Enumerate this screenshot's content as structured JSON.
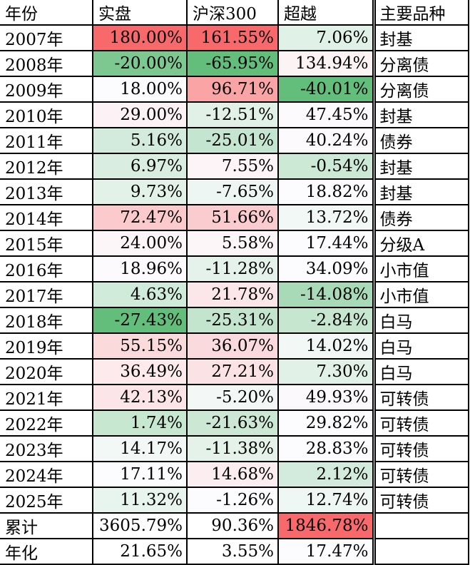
{
  "colors": {
    "scale_max_red": "#F8696B",
    "scale_min_green": "#63BE7B",
    "scale_mid_white": "#FCFCFF",
    "gridline": "#000000"
  },
  "table": {
    "headers": [
      "年份",
      "实盘",
      "沪深300",
      "超越",
      "主要品种"
    ],
    "rows": [
      {
        "year": "2007年",
        "actual": "180.00%",
        "hs300": "161.55%",
        "excess": "7.06%",
        "category": "封基",
        "colors": {
          "actual": "#F8696B",
          "hs300": "#F8696B",
          "excess": "#E0F1E7"
        }
      },
      {
        "year": "2008年",
        "actual": "-20.00%",
        "hs300": "-65.95%",
        "excess": "134.94%",
        "category": "分离债",
        "colors": {
          "actual": "#7DC891",
          "hs300": "#63BE7B",
          "excess": "#FCF3F5"
        }
      },
      {
        "year": "2009年",
        "actual": "18.00%",
        "hs300": "96.71%",
        "excess": "-40.01%",
        "category": "分离债",
        "colors": {
          "actual": "#FCFBFE",
          "hs300": "#FAA4A6",
          "excess": "#63BE7B"
        }
      },
      {
        "year": "2010年",
        "actual": "29.00%",
        "hs300": "-12.51%",
        "excess": "47.45%",
        "category": "封基",
        "colors": {
          "actual": "#FCF1F4",
          "hs300": "#E1F1E8",
          "excess": "#FCFAFD"
        }
      },
      {
        "year": "2011年",
        "actual": "5.16%",
        "hs300": "-25.01%",
        "excess": "40.24%",
        "category": "债券",
        "colors": {
          "actual": "#D3EBDC",
          "hs300": "#C4E5CF",
          "excess": "#FCFAFD"
        }
      },
      {
        "year": "2012年",
        "actual": "6.97%",
        "hs300": "7.55%",
        "excess": "-0.54%",
        "category": "封基",
        "colors": {
          "actual": "#D9EEE1",
          "hs300": "#FCF4F7",
          "excess": "#CCE9D6"
        }
      },
      {
        "year": "2013年",
        "actual": "9.73%",
        "hs300": "-7.65%",
        "excess": "18.82%",
        "category": "封基",
        "colors": {
          "actual": "#E3F2E9",
          "hs300": "#EDF6F2",
          "excess": "#FCFCFF"
        }
      },
      {
        "year": "2014年",
        "actual": "72.47%",
        "hs300": "51.66%",
        "excess": "13.72%",
        "category": "债券",
        "colors": {
          "actual": "#FBCACD",
          "hs300": "#FBCCCF",
          "excess": "#F2F8F6"
        }
      },
      {
        "year": "2015年",
        "actual": "24.00%",
        "hs300": "5.58%",
        "excess": "17.44%",
        "category": "分级A",
        "colors": {
          "actual": "#FCF6F9",
          "hs300": "#FCF6F9",
          "excess": "#FCFCFF"
        }
      },
      {
        "year": "2016年",
        "actual": "18.96%",
        "hs300": "-11.28%",
        "excess": "34.09%",
        "category": "小市值",
        "colors": {
          "actual": "#FCFAFD",
          "hs300": "#E4F2EB",
          "excess": "#FCFBFE"
        }
      },
      {
        "year": "2017年",
        "actual": "4.63%",
        "hs300": "21.78%",
        "excess": "-14.08%",
        "category": "小市值",
        "colors": {
          "actual": "#D1EBDA",
          "hs300": "#FBE7EA",
          "excess": "#A8DAB7"
        }
      },
      {
        "year": "2018年",
        "actual": "-27.43%",
        "hs300": "-25.31%",
        "excess": "-2.84%",
        "category": "白马",
        "colors": {
          "actual": "#63BE7B",
          "hs300": "#C3E5CE",
          "excess": "#C6E6D0"
        }
      },
      {
        "year": "2019年",
        "actual": "55.15%",
        "hs300": "36.07%",
        "excess": "14.02%",
        "category": "白马",
        "colors": {
          "actual": "#FBDADC",
          "hs300": "#FBDADD",
          "excess": "#F1F8F6"
        }
      },
      {
        "year": "2020年",
        "actual": "36.49%",
        "hs300": "27.21%",
        "excess": "7.30%",
        "category": "白马",
        "colors": {
          "actual": "#FCEAED",
          "hs300": "#FBE2E5",
          "excess": "#E1F1E8"
        }
      },
      {
        "year": "2021年",
        "actual": "42.13%",
        "hs300": "-5.20%",
        "excess": "49.93%",
        "category": "可转债",
        "colors": {
          "actual": "#FBE5E8",
          "hs300": "#F3F8F7",
          "excess": "#FCF9FC"
        }
      },
      {
        "year": "2022年",
        "actual": "1.74%",
        "hs300": "-21.63%",
        "excess": "29.82%",
        "category": "可转债",
        "colors": {
          "actual": "#C7E7D1",
          "hs300": "#CCE8D5",
          "excess": "#FCFBFE"
        }
      },
      {
        "year": "2023年",
        "actual": "14.17%",
        "hs300": "-11.38%",
        "excess": "28.83%",
        "category": "可转债",
        "colors": {
          "actual": "#F2F8F6",
          "hs300": "#E4F2EA",
          "excess": "#FCFBFE"
        }
      },
      {
        "year": "2024年",
        "actual": "17.11%",
        "hs300": "14.68%",
        "excess": "2.12%",
        "category": "可转债",
        "colors": {
          "actual": "#FCFCFF",
          "hs300": "#FCEEF0",
          "excess": "#D3EBDC"
        }
      },
      {
        "year": "2025年",
        "actual": "11.32%",
        "hs300": "-1.26%",
        "excess": "12.74%",
        "category": "可转债",
        "colors": {
          "actual": "#E8F4EE",
          "hs300": "#FCFCFF",
          "excess": "#EFF7F4"
        }
      },
      {
        "year": "累计",
        "actual": "3605.79%",
        "hs300": "90.36%",
        "excess": "1846.78%",
        "category": "",
        "colors": {
          "actual": "#FFFFFF",
          "hs300": "#FFFFFF",
          "excess": "#F8696B"
        }
      },
      {
        "year": "年化",
        "actual": "21.65%",
        "hs300": "3.55%",
        "excess": "17.47%",
        "category": "",
        "colors": {
          "actual": "#FFFFFF",
          "hs300": "#FFFFFF",
          "excess": "#FCFCFF"
        }
      }
    ]
  }
}
